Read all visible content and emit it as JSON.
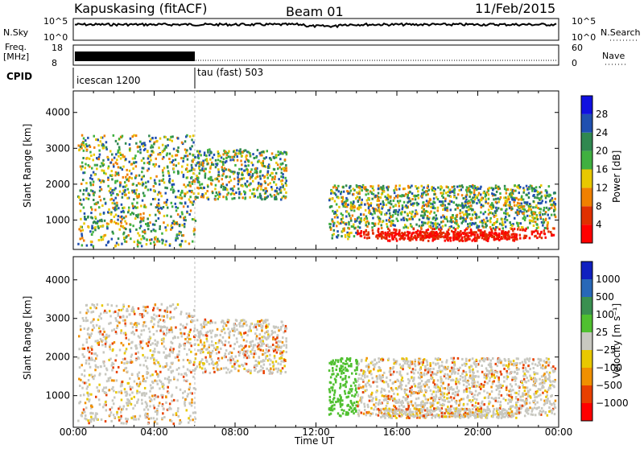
{
  "header": {
    "station": "Kapuskasing (fitACF)",
    "beam": "Beam 01",
    "date": "11/Feb/2015"
  },
  "panels": {
    "nsky": {
      "left_label": "N.Sky",
      "tick_top": "10^5",
      "tick_bottom": "10^0",
      "right_label": "N.Search",
      "right_tick_top": "10^5",
      "right_tick_bottom": "10^0"
    },
    "freq": {
      "left_label_1": "Freq.",
      "left_label_2": "[MHz]",
      "tick_top": "18",
      "tick_bottom": "8",
      "right_label": "Nave",
      "right_tick_top": "60",
      "right_tick_bottom": "0"
    },
    "cpid": {
      "left_label": "CPID",
      "segments": [
        "icescan 1200",
        "tau (fast) 503"
      ]
    }
  },
  "chart_data": [
    {
      "type": "heatmap",
      "name": "power",
      "ylabel": "Slant Range [km]",
      "xlabel": "Time UT",
      "x_ticks": [
        "00:00",
        "04:00",
        "08:00",
        "12:00",
        "16:00",
        "20:00",
        "00:00"
      ],
      "y_ticks": [
        1000,
        2000,
        3000,
        4000
      ],
      "ylim": [
        180,
        4600
      ],
      "xlim_hours": [
        0,
        24
      ],
      "colorbar": {
        "label": "Power [dB]",
        "ticks": [
          "4",
          "8",
          "12",
          "16",
          "20",
          "24",
          "28"
        ],
        "colors": [
          "#1010e0",
          "#2050b0",
          "#308850",
          "#40b040",
          "#e8c800",
          "#f08000",
          "#e03000",
          "#ff0000"
        ]
      }
    },
    {
      "type": "heatmap",
      "name": "velocity",
      "ylabel": "Slant Range [km]",
      "xlabel": "Time UT",
      "x_ticks": [
        "00:00",
        "04:00",
        "08:00",
        "12:00",
        "16:00",
        "20:00",
        "00:00"
      ],
      "y_ticks": [
        1000,
        2000,
        3000,
        4000
      ],
      "ylim": [
        180,
        4600
      ],
      "xlim_hours": [
        0,
        24
      ],
      "colorbar": {
        "label": "Velocity [m s⁻¹]",
        "ticks": [
          "1000",
          "500",
          "100",
          "25",
          "−25",
          "−100",
          "−500",
          "−1000"
        ],
        "colors": [
          "#1020c0",
          "#2868b8",
          "#3a9050",
          "#50c030",
          "#c8c8c0",
          "#e8c800",
          "#f09000",
          "#e84000",
          "#ff0000"
        ]
      }
    }
  ],
  "time_label": "Time UT"
}
